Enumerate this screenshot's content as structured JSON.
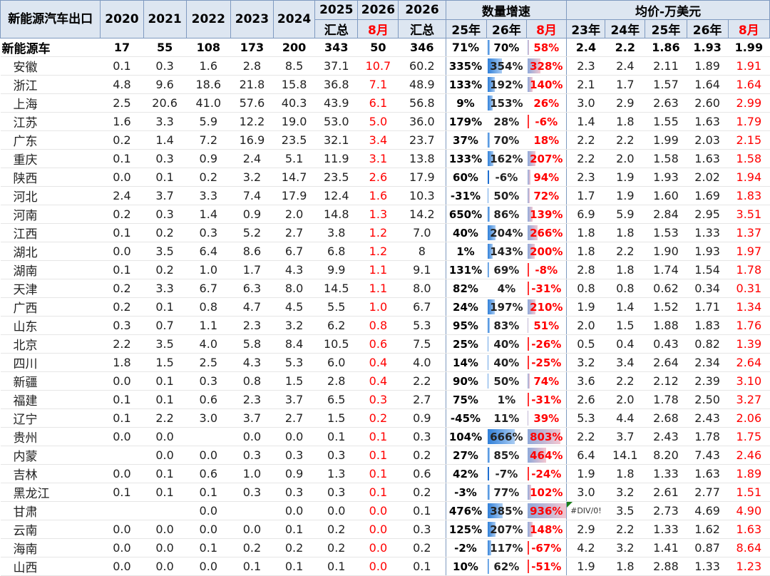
{
  "header": {
    "title": "新能源汽车出口",
    "years": [
      "2020",
      "2021",
      "2022",
      "2023",
      "2024"
    ],
    "col_2025": [
      "2025",
      "汇总"
    ],
    "col_2026_aug": [
      "2026",
      "8月"
    ],
    "col_2026_total": [
      "2026",
      "汇总"
    ],
    "growth_group": "数量增速",
    "growth_cols": [
      "25年",
      "26年",
      "8月"
    ],
    "price_group": "均价-万美元",
    "price_cols": [
      "23年",
      "24年",
      "25年",
      "26年",
      "8月"
    ]
  },
  "rows": [
    {
      "name": "新能源车",
      "y2020": "17",
      "y2021": "55",
      "y2022": "108",
      "y2023": "173",
      "y2024": "200",
      "t2025": "343",
      "aug2026": "50",
      "t2026": "346",
      "g25": "71%",
      "g26": "70%",
      "g26_value": 70,
      "gaug": "58%",
      "gaug_value": 58,
      "p23": "2.4",
      "p24": "2.2",
      "p25": "1.86",
      "p26": "1.93",
      "paug": "1.99"
    },
    {
      "name": "安徽",
      "y2020": "0.1",
      "y2021": "0.3",
      "y2022": "1.6",
      "y2023": "2.8",
      "y2024": "8.5",
      "t2025": "37.1",
      "aug2026": "10.7",
      "t2026": "60.2",
      "g25": "335%",
      "g26": "354%",
      "g26_value": 354,
      "gaug": "328%",
      "gaug_value": 328,
      "p23": "2.3",
      "p24": "2.4",
      "p25": "2.11",
      "p26": "1.89",
      "paug": "1.91"
    },
    {
      "name": "浙江",
      "y2020": "4.8",
      "y2021": "9.6",
      "y2022": "18.6",
      "y2023": "21.8",
      "y2024": "15.8",
      "t2025": "36.8",
      "aug2026": "7.1",
      "t2026": "48.9",
      "g25": "133%",
      "g26": "192%",
      "g26_value": 192,
      "gaug": "140%",
      "gaug_value": 140,
      "p23": "2.1",
      "p24": "1.7",
      "p25": "1.57",
      "p26": "1.64",
      "paug": "1.64"
    },
    {
      "name": "上海",
      "y2020": "2.5",
      "y2021": "20.6",
      "y2022": "41.0",
      "y2023": "57.6",
      "y2024": "40.3",
      "t2025": "43.9",
      "aug2026": "6.1",
      "t2026": "56.8",
      "g25": "9%",
      "g26": "153%",
      "g26_value": 153,
      "gaug": "26%",
      "gaug_value": 26,
      "p23": "3.0",
      "p24": "2.9",
      "p25": "2.63",
      "p26": "2.60",
      "paug": "2.99"
    },
    {
      "name": "江苏",
      "y2020": "1.6",
      "y2021": "3.3",
      "y2022": "5.9",
      "y2023": "12.2",
      "y2024": "19.0",
      "t2025": "53.0",
      "aug2026": "5.0",
      "t2026": "36.0",
      "g25": "179%",
      "g26": "28%",
      "g26_value": 28,
      "gaug": "-6%",
      "gaug_value": -6,
      "p23": "1.4",
      "p24": "1.8",
      "p25": "1.55",
      "p26": "1.63",
      "paug": "1.79"
    },
    {
      "name": "广东",
      "y2020": "0.2",
      "y2021": "1.4",
      "y2022": "7.2",
      "y2023": "16.9",
      "y2024": "23.5",
      "t2025": "32.1",
      "aug2026": "3.4",
      "t2026": "23.7",
      "g25": "37%",
      "g26": "70%",
      "g26_value": 70,
      "gaug": "18%",
      "gaug_value": 18,
      "p23": "2.2",
      "p24": "2.2",
      "p25": "1.99",
      "p26": "2.03",
      "paug": "2.15"
    },
    {
      "name": "重庆",
      "y2020": "0.1",
      "y2021": "0.3",
      "y2022": "0.9",
      "y2023": "2.4",
      "y2024": "5.1",
      "t2025": "11.9",
      "aug2026": "3.1",
      "t2026": "13.8",
      "g25": "133%",
      "g26": "162%",
      "g26_value": 162,
      "gaug": "207%",
      "gaug_value": 207,
      "p23": "2.2",
      "p24": "2.0",
      "p25": "1.58",
      "p26": "1.63",
      "paug": "1.58"
    },
    {
      "name": "陕西",
      "y2020": "0.0",
      "y2021": "0.1",
      "y2022": "0.2",
      "y2023": "3.2",
      "y2024": "14.7",
      "t2025": "23.5",
      "aug2026": "2.6",
      "t2026": "17.9",
      "g25": "60%",
      "g26": "-6%",
      "g26_value": -6,
      "gaug": "94%",
      "gaug_value": 94,
      "p23": "2.3",
      "p24": "1.9",
      "p25": "1.93",
      "p26": "2.02",
      "paug": "1.94"
    },
    {
      "name": "河北",
      "y2020": "2.4",
      "y2021": "3.7",
      "y2022": "3.3",
      "y2023": "7.4",
      "y2024": "17.9",
      "t2025": "12.4",
      "aug2026": "1.6",
      "t2026": "10.3",
      "g25": "-31%",
      "g26": "50%",
      "g26_value": 50,
      "gaug": "72%",
      "gaug_value": 72,
      "p23": "1.7",
      "p24": "1.9",
      "p25": "1.60",
      "p26": "1.69",
      "paug": "1.83"
    },
    {
      "name": "河南",
      "y2020": "0.2",
      "y2021": "0.3",
      "y2022": "1.4",
      "y2023": "0.9",
      "y2024": "2.0",
      "t2025": "14.8",
      "aug2026": "1.3",
      "t2026": "14.2",
      "g25": "650%",
      "g26": "86%",
      "g26_value": 86,
      "gaug": "139%",
      "gaug_value": 139,
      "p23": "6.9",
      "p24": "5.9",
      "p25": "2.84",
      "p26": "2.95",
      "paug": "3.51"
    },
    {
      "name": "江西",
      "y2020": "0.1",
      "y2021": "0.2",
      "y2022": "0.3",
      "y2023": "5.2",
      "y2024": "2.7",
      "t2025": "3.8",
      "aug2026": "1.2",
      "t2026": "7.0",
      "g25": "40%",
      "g26": "204%",
      "g26_value": 204,
      "gaug": "266%",
      "gaug_value": 266,
      "p23": "1.8",
      "p24": "1.8",
      "p25": "1.53",
      "p26": "1.33",
      "paug": "1.37"
    },
    {
      "name": "湖北",
      "y2020": "0.0",
      "y2021": "3.5",
      "y2022": "6.4",
      "y2023": "8.6",
      "y2024": "6.7",
      "t2025": "6.8",
      "aug2026": "1.2",
      "t2026": "8",
      "g25": "1%",
      "g26": "143%",
      "g26_value": 143,
      "gaug": "200%",
      "gaug_value": 200,
      "p23": "1.8",
      "p24": "2.2",
      "p25": "1.90",
      "p26": "1.93",
      "paug": "1.97"
    },
    {
      "name": "湖南",
      "y2020": "0.1",
      "y2021": "0.2",
      "y2022": "1.0",
      "y2023": "1.7",
      "y2024": "4.3",
      "t2025": "9.9",
      "aug2026": "1.1",
      "t2026": "9.1",
      "g25": "131%",
      "g26": "69%",
      "g26_value": 69,
      "gaug": "-8%",
      "gaug_value": -8,
      "p23": "2.8",
      "p24": "1.8",
      "p25": "1.74",
      "p26": "1.54",
      "paug": "1.78"
    },
    {
      "name": "天津",
      "y2020": "0.2",
      "y2021": "3.3",
      "y2022": "6.7",
      "y2023": "6.3",
      "y2024": "8.0",
      "t2025": "14.5",
      "aug2026": "1.1",
      "t2026": "8.0",
      "g25": "82%",
      "g26": "4%",
      "g26_value": 4,
      "gaug": "-31%",
      "gaug_value": -31,
      "p23": "0.8",
      "p24": "0.8",
      "p25": "0.62",
      "p26": "0.34",
      "paug": "0.31"
    },
    {
      "name": "广西",
      "y2020": "0.2",
      "y2021": "0.1",
      "y2022": "0.8",
      "y2023": "4.7",
      "y2024": "4.5",
      "t2025": "5.5",
      "aug2026": "1.0",
      "t2026": "6.7",
      "g25": "24%",
      "g26": "197%",
      "g26_value": 197,
      "gaug": "210%",
      "gaug_value": 210,
      "p23": "1.9",
      "p24": "1.4",
      "p25": "1.52",
      "p26": "1.71",
      "paug": "1.34"
    },
    {
      "name": "山东",
      "y2020": "0.3",
      "y2021": "0.7",
      "y2022": "1.1",
      "y2023": "2.3",
      "y2024": "3.2",
      "t2025": "6.2",
      "aug2026": "0.8",
      "t2026": "5.3",
      "g25": "95%",
      "g26": "83%",
      "g26_value": 83,
      "gaug": "51%",
      "gaug_value": 51,
      "p23": "2.0",
      "p24": "1.5",
      "p25": "1.88",
      "p26": "1.83",
      "paug": "1.76"
    },
    {
      "name": "北京",
      "y2020": "2.2",
      "y2021": "3.5",
      "y2022": "4.0",
      "y2023": "5.8",
      "y2024": "8.4",
      "t2025": "10.5",
      "aug2026": "0.6",
      "t2026": "7.5",
      "g25": "25%",
      "g26": "40%",
      "g26_value": 40,
      "gaug": "-26%",
      "gaug_value": -26,
      "p23": "0.5",
      "p24": "0.4",
      "p25": "0.43",
      "p26": "0.82",
      "paug": "1.39"
    },
    {
      "name": "四川",
      "y2020": "1.8",
      "y2021": "1.5",
      "y2022": "2.5",
      "y2023": "4.3",
      "y2024": "5.3",
      "t2025": "6.0",
      "aug2026": "0.4",
      "t2026": "4.0",
      "g25": "14%",
      "g26": "40%",
      "g26_value": 40,
      "gaug": "-25%",
      "gaug_value": -25,
      "p23": "3.2",
      "p24": "3.4",
      "p25": "2.64",
      "p26": "2.34",
      "paug": "2.64"
    },
    {
      "name": "新疆",
      "y2020": "0.0",
      "y2021": "0.1",
      "y2022": "0.3",
      "y2023": "0.8",
      "y2024": "1.5",
      "t2025": "2.8",
      "aug2026": "0.4",
      "t2026": "2.2",
      "g25": "90%",
      "g26": "50%",
      "g26_value": 50,
      "gaug": "74%",
      "gaug_value": 74,
      "p23": "3.6",
      "p24": "2.2",
      "p25": "2.12",
      "p26": "2.39",
      "paug": "3.10"
    },
    {
      "name": "福建",
      "y2020": "0.1",
      "y2021": "0.1",
      "y2022": "0.6",
      "y2023": "2.3",
      "y2024": "3.7",
      "t2025": "6.5",
      "aug2026": "0.3",
      "t2026": "2.7",
      "g25": "75%",
      "g26": "1%",
      "g26_value": 1,
      "gaug": "-31%",
      "gaug_value": -31,
      "p23": "2.6",
      "p24": "2.0",
      "p25": "1.78",
      "p26": "2.50",
      "paug": "3.27"
    },
    {
      "name": "辽宁",
      "y2020": "0.1",
      "y2021": "2.2",
      "y2022": "3.0",
      "y2023": "3.7",
      "y2024": "2.7",
      "t2025": "1.5",
      "aug2026": "0.2",
      "t2026": "0.9",
      "g25": "-45%",
      "g26": "11%",
      "g26_value": 11,
      "gaug": "39%",
      "gaug_value": 39,
      "p23": "5.3",
      "p24": "4.4",
      "p25": "2.68",
      "p26": "2.43",
      "paug": "2.06"
    },
    {
      "name": "贵州",
      "y2020": "0.0",
      "y2021": "0.0",
      "y2022": "",
      "y2023": "0.0",
      "y2024": "0.0",
      "t2025": "0.1",
      "aug2026": "0.1",
      "t2026": "0.3",
      "g25": "104%",
      "g26": "666%",
      "g26_value": 666,
      "gaug": "803%",
      "gaug_value": 803,
      "p23": "2.2",
      "p24": "3.7",
      "p25": "2.43",
      "p26": "1.78",
      "paug": "1.75"
    },
    {
      "name": "内蒙",
      "y2020": "",
      "y2021": "0.0",
      "y2022": "0.0",
      "y2023": "0.3",
      "y2024": "0.3",
      "t2025": "0.3",
      "aug2026": "0.1",
      "t2026": "0.2",
      "g25": "27%",
      "g26": "85%",
      "g26_value": 85,
      "gaug": "464%",
      "gaug_value": 464,
      "p23": "6.4",
      "p24": "14.1",
      "p25": "8.20",
      "p26": "7.43",
      "paug": "2.46"
    },
    {
      "name": "吉林",
      "y2020": "0.0",
      "y2021": "0.1",
      "y2022": "0.6",
      "y2023": "1.0",
      "y2024": "0.9",
      "t2025": "1.3",
      "aug2026": "0.1",
      "t2026": "0.6",
      "g25": "42%",
      "g26": "-7%",
      "g26_value": -7,
      "gaug": "-24%",
      "gaug_value": -24,
      "p23": "1.9",
      "p24": "1.8",
      "p25": "1.33",
      "p26": "1.63",
      "paug": "1.89"
    },
    {
      "name": "黑龙江",
      "y2020": "0.1",
      "y2021": "0.1",
      "y2022": "0.1",
      "y2023": "0.3",
      "y2024": "0.3",
      "t2025": "0.3",
      "aug2026": "0.1",
      "t2026": "0.2",
      "g25": "-3%",
      "g26": "77%",
      "g26_value": 77,
      "gaug": "102%",
      "gaug_value": 102,
      "p23": "3.0",
      "p24": "3.2",
      "p25": "2.61",
      "p26": "2.77",
      "paug": "1.51"
    },
    {
      "name": "甘肃",
      "y2020": "",
      "y2021": "",
      "y2022": "0.0",
      "y2023": "",
      "y2024": "0.0",
      "t2025": "0.0",
      "aug2026": "0.0",
      "t2026": "0.1",
      "g25": "476%",
      "g26": "385%",
      "g26_value": 385,
      "gaug": "936%",
      "gaug_value": 936,
      "p23": "#DIV/0!",
      "p24": "3.5",
      "p25": "2.73",
      "p26": "4.69",
      "paug": "4.90"
    },
    {
      "name": "云南",
      "y2020": "0.0",
      "y2021": "0.0",
      "y2022": "0.0",
      "y2023": "0.0",
      "y2024": "0.1",
      "t2025": "0.2",
      "aug2026": "0.0",
      "t2026": "0.3",
      "g25": "125%",
      "g26": "207%",
      "g26_value": 207,
      "gaug": "148%",
      "gaug_value": 148,
      "p23": "2.9",
      "p24": "2.2",
      "p25": "1.33",
      "p26": "1.62",
      "paug": "1.63"
    },
    {
      "name": "海南",
      "y2020": "0.0",
      "y2021": "0.0",
      "y2022": "0.1",
      "y2023": "0.2",
      "y2024": "0.2",
      "t2025": "0.2",
      "aug2026": "0.0",
      "t2026": "0.2",
      "g25": "-2%",
      "g26": "117%",
      "g26_value": 117,
      "gaug": "-67%",
      "gaug_value": -67,
      "p23": "4.2",
      "p24": "3.2",
      "p25": "1.41",
      "p26": "0.87",
      "paug": "8.64"
    },
    {
      "name": "山西",
      "y2020": "0.0",
      "y2021": "0.0",
      "y2022": "0.0",
      "y2023": "0.1",
      "y2024": "0.1",
      "t2025": "0.1",
      "aug2026": "0.0",
      "t2026": "0.1",
      "g25": "10%",
      "g26": "62%",
      "g26_value": 62,
      "gaug": "-51%",
      "gaug_value": -51,
      "p23": "1.9",
      "p24": "1.8",
      "p25": "2.88",
      "p26": "1.33",
      "paug": "1.23"
    }
  ],
  "colors": {
    "accent_red": "#ff0000",
    "header_bg": "#dde6f1",
    "bar_blue": "#2f7fd8",
    "bar_pink": "#f4c6d0",
    "error_marker": "#1a7f1a"
  }
}
